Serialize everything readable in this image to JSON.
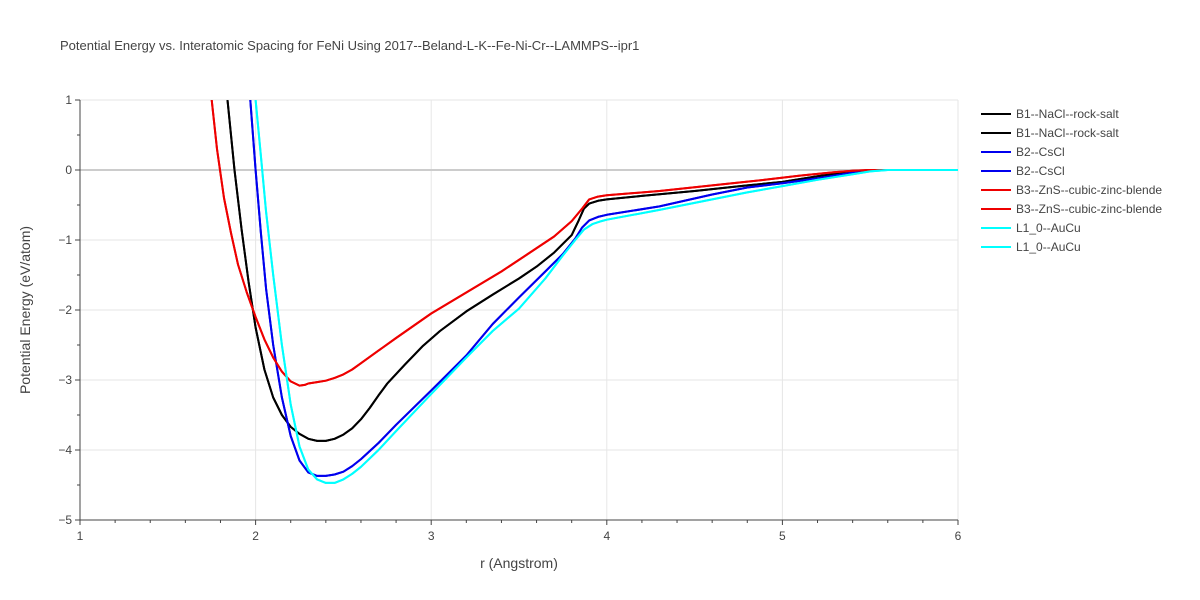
{
  "chart_data": {
    "type": "line",
    "title": "Potential Energy vs. Interatomic Spacing for FeNi Using 2017--Beland-L-K--Fe-Ni-Cr--LAMMPS--ipr1",
    "xlabel": "r (Angstrom)",
    "ylabel": "Potential Energy (eV/atom)",
    "xlim": [
      1,
      6
    ],
    "ylim": [
      -5,
      1
    ],
    "xticks": [
      1,
      2,
      3,
      4,
      5,
      6
    ],
    "yticks": [
      -5,
      -4,
      -3,
      -2,
      -1,
      0,
      1
    ],
    "xtick_labels": [
      "1",
      "2",
      "3",
      "4",
      "5",
      "6"
    ],
    "ytick_labels": [
      "−5",
      "−4",
      "−3",
      "−2",
      "−1",
      "0",
      "1"
    ],
    "grid": true,
    "legend_position": "right",
    "series": [
      {
        "name": "B1--NaCl--rock-salt",
        "color": "#000000",
        "x": [
          1.84,
          1.88,
          1.92,
          1.96,
          2.0,
          2.05,
          2.1,
          2.15,
          2.2,
          2.25,
          2.3,
          2.35,
          2.4,
          2.45,
          2.5,
          2.55,
          2.6,
          2.65,
          2.7,
          2.75,
          2.85,
          2.95,
          3.05,
          3.2,
          3.35,
          3.5,
          3.6,
          3.7,
          3.8,
          3.84,
          3.87,
          3.9,
          3.95,
          4.0,
          4.2,
          4.5,
          4.8,
          5.0,
          5.2,
          5.4,
          5.5,
          5.6,
          5.8,
          6.0
        ],
        "y": [
          1.0,
          0.0,
          -0.85,
          -1.6,
          -2.25,
          -2.85,
          -3.25,
          -3.5,
          -3.67,
          -3.77,
          -3.84,
          -3.87,
          -3.87,
          -3.84,
          -3.78,
          -3.69,
          -3.56,
          -3.4,
          -3.22,
          -3.05,
          -2.78,
          -2.52,
          -2.3,
          -2.02,
          -1.78,
          -1.55,
          -1.38,
          -1.18,
          -0.93,
          -0.72,
          -0.55,
          -0.48,
          -0.44,
          -0.42,
          -0.37,
          -0.3,
          -0.22,
          -0.17,
          -0.09,
          -0.02,
          0.0,
          0.0,
          0.0,
          0.0
        ]
      },
      {
        "name": "B1--NaCl--rock-salt",
        "color": "#000000",
        "x": [
          1.84,
          1.88,
          1.92,
          1.96,
          2.0,
          2.05,
          2.1,
          2.15,
          2.2,
          2.25,
          2.3,
          2.35,
          2.4,
          2.45,
          2.5,
          2.55,
          2.6,
          2.65,
          2.7,
          2.75,
          2.85,
          2.95,
          3.05,
          3.2,
          3.35,
          3.5,
          3.6,
          3.7,
          3.8,
          3.84,
          3.87,
          3.9,
          3.95,
          4.0,
          4.2,
          4.5,
          4.8,
          5.0,
          5.2,
          5.4,
          5.5,
          5.6,
          5.8,
          6.0
        ],
        "y": [
          1.0,
          0.0,
          -0.85,
          -1.6,
          -2.25,
          -2.85,
          -3.25,
          -3.5,
          -3.67,
          -3.77,
          -3.84,
          -3.87,
          -3.87,
          -3.84,
          -3.78,
          -3.69,
          -3.56,
          -3.4,
          -3.22,
          -3.05,
          -2.78,
          -2.52,
          -2.3,
          -2.02,
          -1.78,
          -1.55,
          -1.38,
          -1.18,
          -0.93,
          -0.72,
          -0.55,
          -0.48,
          -0.44,
          -0.42,
          -0.37,
          -0.3,
          -0.22,
          -0.17,
          -0.09,
          -0.02,
          0.0,
          0.0,
          0.0,
          0.0
        ]
      },
      {
        "name": "B2--CsCl",
        "color": "#0000ee",
        "x": [
          1.97,
          2.0,
          2.03,
          2.06,
          2.1,
          2.15,
          2.2,
          2.25,
          2.3,
          2.35,
          2.4,
          2.45,
          2.5,
          2.55,
          2.6,
          2.7,
          2.8,
          3.0,
          3.2,
          3.35,
          3.5,
          3.65,
          3.75,
          3.82,
          3.86,
          3.9,
          3.95,
          4.0,
          4.3,
          4.6,
          4.8,
          5.0,
          5.2,
          5.4,
          5.5,
          5.6,
          5.8,
          6.0
        ],
        "y": [
          1.0,
          0.0,
          -0.9,
          -1.7,
          -2.5,
          -3.25,
          -3.8,
          -4.15,
          -4.32,
          -4.37,
          -4.37,
          -4.35,
          -4.31,
          -4.23,
          -4.13,
          -3.9,
          -3.64,
          -3.15,
          -2.65,
          -2.2,
          -1.82,
          -1.45,
          -1.2,
          -0.98,
          -0.82,
          -0.72,
          -0.67,
          -0.64,
          -0.52,
          -0.35,
          -0.25,
          -0.19,
          -0.12,
          -0.04,
          0.0,
          0.0,
          0.0,
          0.0
        ]
      },
      {
        "name": "B2--CsCl",
        "color": "#0000ee",
        "x": [
          1.97,
          2.0,
          2.03,
          2.06,
          2.1,
          2.15,
          2.2,
          2.25,
          2.3,
          2.35,
          2.4,
          2.45,
          2.5,
          2.55,
          2.6,
          2.7,
          2.8,
          3.0,
          3.2,
          3.35,
          3.5,
          3.65,
          3.75,
          3.82,
          3.86,
          3.9,
          3.95,
          4.0,
          4.3,
          4.6,
          4.8,
          5.0,
          5.2,
          5.4,
          5.5,
          5.6,
          5.8,
          6.0
        ],
        "y": [
          1.0,
          0.0,
          -0.9,
          -1.7,
          -2.5,
          -3.25,
          -3.8,
          -4.15,
          -4.32,
          -4.37,
          -4.37,
          -4.35,
          -4.31,
          -4.23,
          -4.13,
          -3.9,
          -3.64,
          -3.15,
          -2.65,
          -2.2,
          -1.82,
          -1.45,
          -1.2,
          -0.98,
          -0.82,
          -0.72,
          -0.67,
          -0.64,
          -0.52,
          -0.35,
          -0.25,
          -0.19,
          -0.12,
          -0.04,
          0.0,
          0.0,
          0.0,
          0.0
        ]
      },
      {
        "name": "B3--ZnS--cubic-zinc-blende",
        "color": "#ee0000",
        "x": [
          1.75,
          1.78,
          1.82,
          1.86,
          1.9,
          1.95,
          2.0,
          2.05,
          2.1,
          2.15,
          2.2,
          2.25,
          2.28,
          2.3,
          2.35,
          2.4,
          2.45,
          2.5,
          2.55,
          2.6,
          2.7,
          2.8,
          3.0,
          3.2,
          3.4,
          3.55,
          3.7,
          3.8,
          3.86,
          3.9,
          3.95,
          4.0,
          4.3,
          4.6,
          4.9,
          5.1,
          5.3,
          5.4,
          5.5,
          5.6,
          5.8,
          6.0
        ],
        "y": [
          1.0,
          0.3,
          -0.4,
          -0.9,
          -1.35,
          -1.75,
          -2.1,
          -2.42,
          -2.68,
          -2.88,
          -3.02,
          -3.08,
          -3.07,
          -3.05,
          -3.03,
          -3.01,
          -2.97,
          -2.92,
          -2.85,
          -2.76,
          -2.58,
          -2.4,
          -2.05,
          -1.75,
          -1.45,
          -1.2,
          -0.95,
          -0.73,
          -0.55,
          -0.42,
          -0.38,
          -0.36,
          -0.3,
          -0.22,
          -0.14,
          -0.08,
          -0.03,
          -0.01,
          0.0,
          0.0,
          0.0,
          0.0
        ]
      },
      {
        "name": "B3--ZnS--cubic-zinc-blende",
        "color": "#ee0000",
        "x": [
          1.75,
          1.78,
          1.82,
          1.86,
          1.9,
          1.95,
          2.0,
          2.05,
          2.1,
          2.15,
          2.2,
          2.25,
          2.28,
          2.3,
          2.35,
          2.4,
          2.45,
          2.5,
          2.55,
          2.6,
          2.7,
          2.8,
          3.0,
          3.2,
          3.4,
          3.55,
          3.7,
          3.8,
          3.86,
          3.9,
          3.95,
          4.0,
          4.3,
          4.6,
          4.9,
          5.1,
          5.3,
          5.4,
          5.5,
          5.6,
          5.8,
          6.0
        ],
        "y": [
          1.0,
          0.3,
          -0.4,
          -0.9,
          -1.35,
          -1.75,
          -2.1,
          -2.42,
          -2.68,
          -2.88,
          -3.02,
          -3.08,
          -3.07,
          -3.05,
          -3.03,
          -3.01,
          -2.97,
          -2.92,
          -2.85,
          -2.76,
          -2.58,
          -2.4,
          -2.05,
          -1.75,
          -1.45,
          -1.2,
          -0.95,
          -0.73,
          -0.55,
          -0.42,
          -0.38,
          -0.36,
          -0.3,
          -0.22,
          -0.14,
          -0.08,
          -0.03,
          -0.01,
          0.0,
          0.0,
          0.0,
          0.0
        ]
      },
      {
        "name": "L1_0--AuCu",
        "color": "#00ffff",
        "x": [
          2.0,
          2.03,
          2.06,
          2.1,
          2.15,
          2.2,
          2.25,
          2.3,
          2.35,
          2.4,
          2.45,
          2.5,
          2.55,
          2.6,
          2.7,
          2.8,
          3.0,
          3.2,
          3.35,
          3.5,
          3.65,
          3.75,
          3.82,
          3.87,
          3.92,
          3.97,
          4.0,
          4.3,
          4.6,
          4.8,
          5.0,
          5.2,
          5.4,
          5.5,
          5.6,
          5.8,
          6.0
        ],
        "y": [
          1.0,
          0.2,
          -0.6,
          -1.5,
          -2.5,
          -3.35,
          -3.95,
          -4.28,
          -4.42,
          -4.47,
          -4.47,
          -4.42,
          -4.34,
          -4.24,
          -4.0,
          -3.73,
          -3.2,
          -2.68,
          -2.3,
          -1.98,
          -1.55,
          -1.22,
          -1.0,
          -0.85,
          -0.77,
          -0.73,
          -0.71,
          -0.57,
          -0.42,
          -0.32,
          -0.23,
          -0.14,
          -0.06,
          -0.02,
          0.0,
          0.0,
          0.0
        ]
      },
      {
        "name": "L1_0--AuCu",
        "color": "#00ffff",
        "x": [
          2.0,
          2.03,
          2.06,
          2.1,
          2.15,
          2.2,
          2.25,
          2.3,
          2.35,
          2.4,
          2.45,
          2.5,
          2.55,
          2.6,
          2.7,
          2.8,
          3.0,
          3.2,
          3.35,
          3.5,
          3.65,
          3.75,
          3.82,
          3.87,
          3.92,
          3.97,
          4.0,
          4.3,
          4.6,
          4.8,
          5.0,
          5.2,
          5.4,
          5.5,
          5.6,
          5.8,
          6.0
        ],
        "y": [
          1.0,
          0.2,
          -0.6,
          -1.5,
          -2.5,
          -3.35,
          -3.95,
          -4.28,
          -4.42,
          -4.47,
          -4.47,
          -4.42,
          -4.34,
          -4.24,
          -4.0,
          -3.73,
          -3.2,
          -2.68,
          -2.3,
          -1.98,
          -1.55,
          -1.22,
          -1.0,
          -0.85,
          -0.77,
          -0.73,
          -0.71,
          -0.57,
          -0.42,
          -0.32,
          -0.23,
          -0.14,
          -0.06,
          -0.02,
          0.0,
          0.0,
          0.0
        ]
      }
    ]
  }
}
